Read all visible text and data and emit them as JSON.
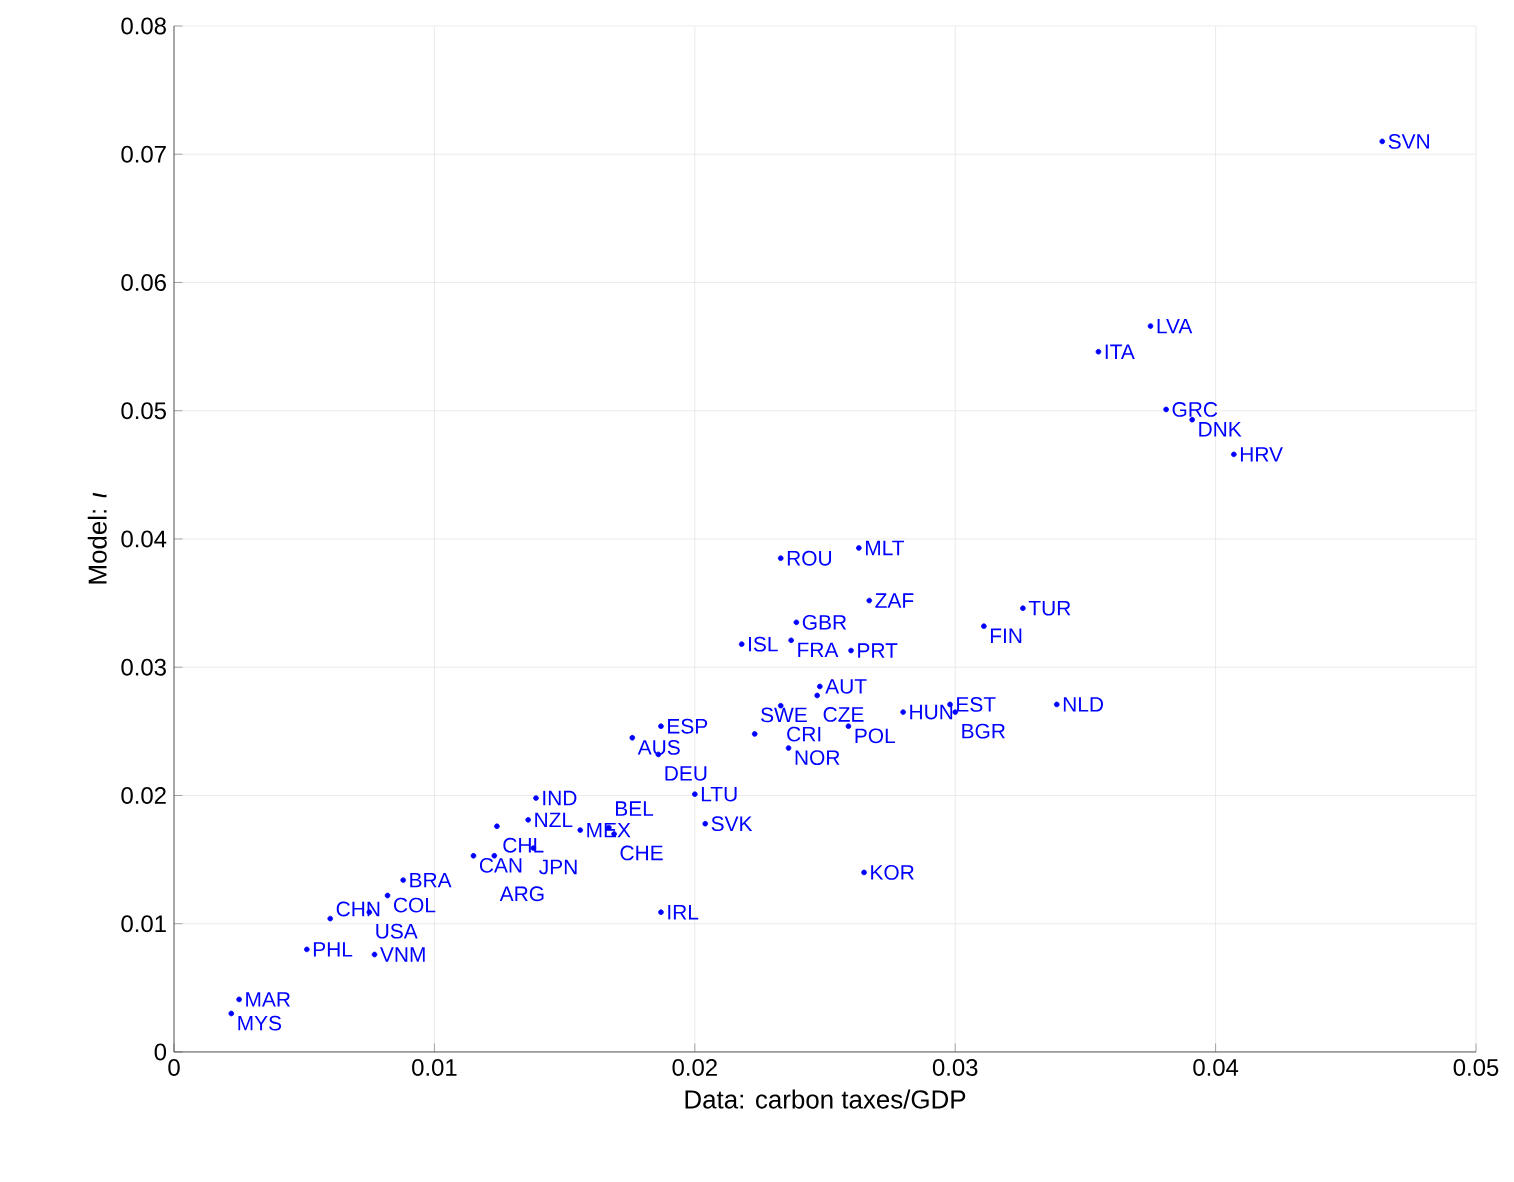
{
  "chart_data": {
    "type": "scatter",
    "xlabel": "Data: carbon taxes/GDP",
    "ylabel": "Model: *ι*",
    "xlim": [
      0,
      0.05
    ],
    "ylim": [
      0,
      0.08
    ],
    "xticks": [
      0,
      0.01,
      0.02,
      0.03,
      0.04,
      0.05
    ],
    "yticks": [
      0,
      0.01,
      0.02,
      0.03,
      0.04,
      0.05,
      0.06,
      0.07,
      0.08
    ],
    "grid": true,
    "marker": "circle",
    "series": [
      {
        "color": "#0000ff",
        "x": [
          0.0464,
          0.0375,
          0.0355,
          0.0381,
          0.0391,
          0.0407,
          0.0233,
          0.0263,
          0.0267,
          0.0239,
          0.0237,
          0.0218,
          0.026,
          0.0326,
          0.0311,
          0.0248,
          0.0247,
          0.0233,
          0.0298,
          0.03,
          0.028,
          0.0339,
          0.0259,
          0.0223,
          0.0236,
          0.0187,
          0.0176,
          0.0186,
          0.02,
          0.0204,
          0.0265,
          0.0187,
          0.0139,
          0.0136,
          0.0124,
          0.0156,
          0.0167,
          0.0169,
          0.0138,
          0.0115,
          0.0123,
          0.0088,
          0.0082,
          0.0075,
          0.006,
          0.0051,
          0.0077,
          0.0025,
          0.0022
        ],
        "values": [
          0.071,
          0.0566,
          0.0546,
          0.0501,
          0.0493,
          0.0466,
          0.0385,
          0.0393,
          0.0352,
          0.0335,
          0.0321,
          0.0318,
          0.0313,
          0.0346,
          0.0332,
          0.0285,
          0.0278,
          0.027,
          0.0271,
          0.0265,
          0.0265,
          0.0271,
          0.0254,
          0.0248,
          0.0237,
          0.0254,
          0.0245,
          0.0232,
          0.0201,
          0.0178,
          0.014,
          0.0109,
          0.0198,
          0.0181,
          0.0176,
          0.0173,
          0.0175,
          0.017,
          0.0159,
          0.0153,
          0.0153,
          0.0134,
          0.0122,
          0.0109,
          0.0104,
          0.008,
          0.0076,
          0.0041,
          0.003
        ],
        "value_labels": [
          "SVN",
          "LVA",
          "ITA",
          "GRC",
          "DNK",
          "HRV",
          "ROU",
          "MLT",
          "ZAF",
          "GBR",
          "FRA",
          "ISL",
          "PRT",
          "TUR",
          "FIN",
          "AUT",
          "CZE",
          "CRI",
          "EST",
          "BGR",
          "HUN",
          "NLD",
          "POL",
          "SWE",
          "NOR",
          "ESP",
          "AUS",
          "DEU",
          "LTU",
          "SVK",
          "KOR",
          "IRL",
          "IND",
          "NZL",
          "CHL",
          "MEX",
          "BEL",
          "CHE",
          "JPN",
          "CAN",
          "ARG",
          "BRA",
          "COL",
          "USA",
          "CHN",
          "PHL",
          "VNM",
          "MAR",
          "MYS"
        ]
      }
    ]
  }
}
